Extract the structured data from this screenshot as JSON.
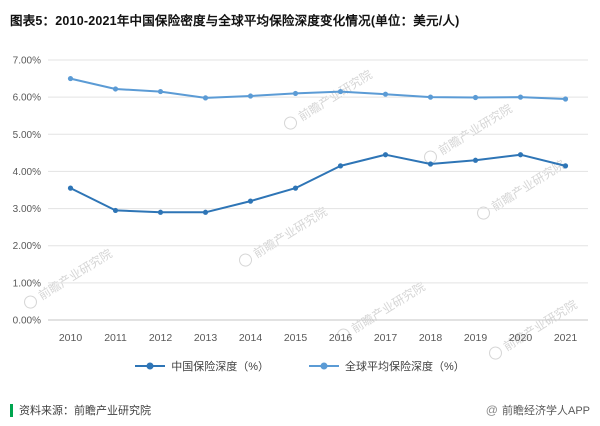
{
  "title": "图表5：2010-2021年中国保险密度与全球平均保险深度变化情况(单位：美元/人)",
  "watermark": {
    "text": "前瞻产业研究院"
  },
  "footer": {
    "source": "资料来源：前瞻产业研究院",
    "credit": "前瞻经济学人APP",
    "credit_icon": "@"
  },
  "chart_data": {
    "type": "line",
    "title": "图表5：2010-2021年中国保险密度与全球平均保险深度变化情况(单位：美元/人)",
    "x": [
      "2010",
      "2011",
      "2012",
      "2013",
      "2014",
      "2015",
      "2016",
      "2017",
      "2018",
      "2019",
      "2020",
      "2021"
    ],
    "series": [
      {
        "name": "中国保险深度（%）",
        "color": "#2e75b6",
        "values": [
          3.55,
          2.95,
          2.9,
          2.9,
          3.2,
          3.55,
          4.15,
          4.45,
          4.2,
          4.3,
          4.45,
          4.15
        ]
      },
      {
        "name": "全球平均保险深度（%）",
        "color": "#5b9bd5",
        "values": [
          6.5,
          6.22,
          6.15,
          5.98,
          6.03,
          6.1,
          6.15,
          6.08,
          6.0,
          5.99,
          6.0,
          5.95
        ]
      }
    ],
    "ylim": [
      0,
      7
    ],
    "ytick_step": 1,
    "ytick_labels": [
      "0.00%",
      "1.00%",
      "2.00%",
      "3.00%",
      "4.00%",
      "5.00%",
      "6.00%",
      "7.00%"
    ],
    "grid": true,
    "legend_position": "bottom"
  }
}
